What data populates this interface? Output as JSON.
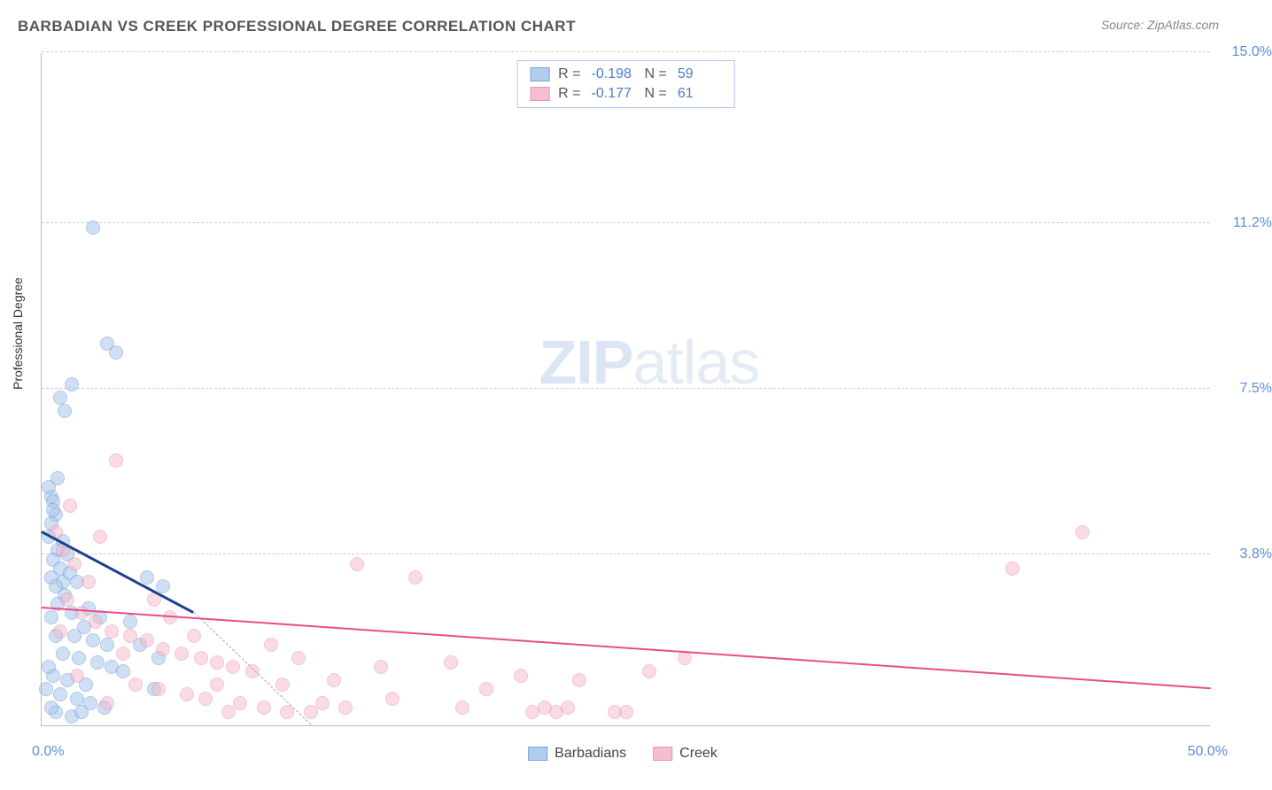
{
  "header": {
    "title": "BARBADIAN VS CREEK PROFESSIONAL DEGREE CORRELATION CHART",
    "source": "Source: ZipAtlas.com"
  },
  "chart": {
    "type": "scatter",
    "ylabel": "Professional Degree",
    "xlim": [
      0,
      50
    ],
    "ylim": [
      0,
      15
    ],
    "x_origin_label": "0.0%",
    "x_max_label": "50.0%",
    "y_ticks": [
      {
        "v": 3.8,
        "label": "3.8%"
      },
      {
        "v": 7.5,
        "label": "7.5%"
      },
      {
        "v": 11.2,
        "label": "11.2%"
      },
      {
        "v": 15.0,
        "label": "15.0%"
      }
    ],
    "grid_color": "#cccccc",
    "background_color": "#ffffff",
    "marker_radius": 8,
    "marker_border_width": 1.2,
    "series": [
      {
        "name": "Barbadians",
        "fill": "#aac7ec",
        "fill_opacity": 0.55,
        "stroke": "#6a9bd8",
        "reg_color": "#1c3f8f",
        "reg_width": 2.5,
        "R": "-0.198",
        "N": "59",
        "regression": {
          "x1": 0,
          "y1": 4.3,
          "x2": 6.5,
          "y2": 2.5
        },
        "dash": {
          "x1": 6.5,
          "y1": 2.5,
          "x2": 11.5,
          "y2": 0
        },
        "points": [
          [
            0.4,
            5.1
          ],
          [
            0.5,
            5.0
          ],
          [
            0.6,
            4.7
          ],
          [
            0.4,
            4.5
          ],
          [
            0.3,
            4.2
          ],
          [
            0.7,
            3.9
          ],
          [
            0.5,
            3.7
          ],
          [
            0.8,
            3.5
          ],
          [
            0.4,
            3.3
          ],
          [
            0.9,
            3.2
          ],
          [
            0.6,
            3.1
          ],
          [
            1.2,
            3.4
          ],
          [
            1.5,
            3.2
          ],
          [
            1.0,
            2.9
          ],
          [
            0.7,
            2.7
          ],
          [
            1.3,
            2.5
          ],
          [
            2.0,
            2.6
          ],
          [
            2.5,
            2.4
          ],
          [
            1.8,
            2.2
          ],
          [
            1.4,
            2.0
          ],
          [
            2.2,
            1.9
          ],
          [
            2.8,
            1.8
          ],
          [
            0.9,
            1.6
          ],
          [
            1.6,
            1.5
          ],
          [
            2.4,
            1.4
          ],
          [
            3.0,
            1.3
          ],
          [
            3.5,
            1.2
          ],
          [
            0.5,
            1.1
          ],
          [
            1.1,
            1.0
          ],
          [
            1.9,
            0.9
          ],
          [
            0.8,
            0.7
          ],
          [
            1.5,
            0.6
          ],
          [
            2.1,
            0.5
          ],
          [
            2.7,
            0.4
          ],
          [
            0.6,
            0.3
          ],
          [
            1.3,
            0.2
          ],
          [
            4.5,
            3.3
          ],
          [
            5.2,
            3.1
          ],
          [
            3.8,
            2.3
          ],
          [
            4.2,
            1.8
          ],
          [
            5.0,
            1.5
          ],
          [
            4.8,
            0.8
          ],
          [
            1.0,
            7.0
          ],
          [
            0.8,
            7.3
          ],
          [
            1.3,
            7.6
          ],
          [
            2.8,
            8.5
          ],
          [
            3.2,
            8.3
          ],
          [
            2.2,
            11.1
          ],
          [
            0.5,
            4.8
          ],
          [
            0.3,
            5.3
          ],
          [
            0.7,
            5.5
          ],
          [
            0.9,
            4.1
          ],
          [
            1.1,
            3.8
          ],
          [
            0.4,
            2.4
          ],
          [
            0.6,
            2.0
          ],
          [
            0.3,
            1.3
          ],
          [
            0.2,
            0.8
          ],
          [
            0.4,
            0.4
          ],
          [
            1.7,
            0.3
          ]
        ]
      },
      {
        "name": "Creek",
        "fill": "#f4b8cb",
        "fill_opacity": 0.5,
        "stroke": "#e889aa",
        "reg_color": "#e84d88",
        "reg_width": 2,
        "R": "-0.177",
        "N": "61",
        "regression": {
          "x1": 0,
          "y1": 2.6,
          "x2": 50,
          "y2": 0.8
        },
        "points": [
          [
            0.6,
            4.3
          ],
          [
            0.9,
            3.9
          ],
          [
            1.4,
            3.6
          ],
          [
            2.0,
            3.2
          ],
          [
            1.1,
            2.8
          ],
          [
            1.7,
            2.5
          ],
          [
            2.3,
            2.3
          ],
          [
            3.0,
            2.1
          ],
          [
            3.8,
            2.0
          ],
          [
            4.5,
            1.9
          ],
          [
            5.2,
            1.7
          ],
          [
            6.0,
            1.6
          ],
          [
            6.8,
            1.5
          ],
          [
            7.5,
            1.4
          ],
          [
            8.2,
            1.3
          ],
          [
            9.0,
            1.2
          ],
          [
            4.0,
            0.9
          ],
          [
            5.0,
            0.8
          ],
          [
            6.2,
            0.7
          ],
          [
            7.0,
            0.6
          ],
          [
            8.5,
            0.5
          ],
          [
            9.5,
            0.4
          ],
          [
            10.5,
            0.3
          ],
          [
            11.5,
            0.3
          ],
          [
            12.5,
            1.0
          ],
          [
            13.5,
            3.6
          ],
          [
            14.5,
            1.3
          ],
          [
            16.0,
            3.3
          ],
          [
            17.5,
            1.4
          ],
          [
            19.0,
            0.8
          ],
          [
            20.5,
            1.1
          ],
          [
            21.0,
            0.3
          ],
          [
            21.5,
            0.4
          ],
          [
            22.0,
            0.3
          ],
          [
            22.5,
            0.4
          ],
          [
            24.5,
            0.3
          ],
          [
            25.0,
            0.3
          ],
          [
            26.0,
            1.2
          ],
          [
            27.5,
            1.5
          ],
          [
            9.8,
            1.8
          ],
          [
            10.3,
            0.9
          ],
          [
            11.0,
            1.5
          ],
          [
            12.0,
            0.5
          ],
          [
            15.0,
            0.6
          ],
          [
            3.2,
            5.9
          ],
          [
            1.2,
            4.9
          ],
          [
            2.5,
            4.2
          ],
          [
            0.8,
            2.1
          ],
          [
            1.5,
            1.1
          ],
          [
            2.8,
            0.5
          ],
          [
            41.5,
            3.5
          ],
          [
            44.5,
            4.3
          ],
          [
            4.8,
            2.8
          ],
          [
            5.5,
            2.4
          ],
          [
            6.5,
            2.0
          ],
          [
            7.5,
            0.9
          ],
          [
            8.0,
            0.3
          ],
          [
            13.0,
            0.4
          ],
          [
            18.0,
            0.4
          ],
          [
            23.0,
            1.0
          ],
          [
            3.5,
            1.6
          ]
        ]
      }
    ]
  },
  "watermark": {
    "zip": "ZIP",
    "atlas": "atlas"
  },
  "legend": {
    "series1": "Barbadians",
    "series2": "Creek"
  },
  "stats_labels": {
    "R": "R =",
    "N": "N ="
  }
}
